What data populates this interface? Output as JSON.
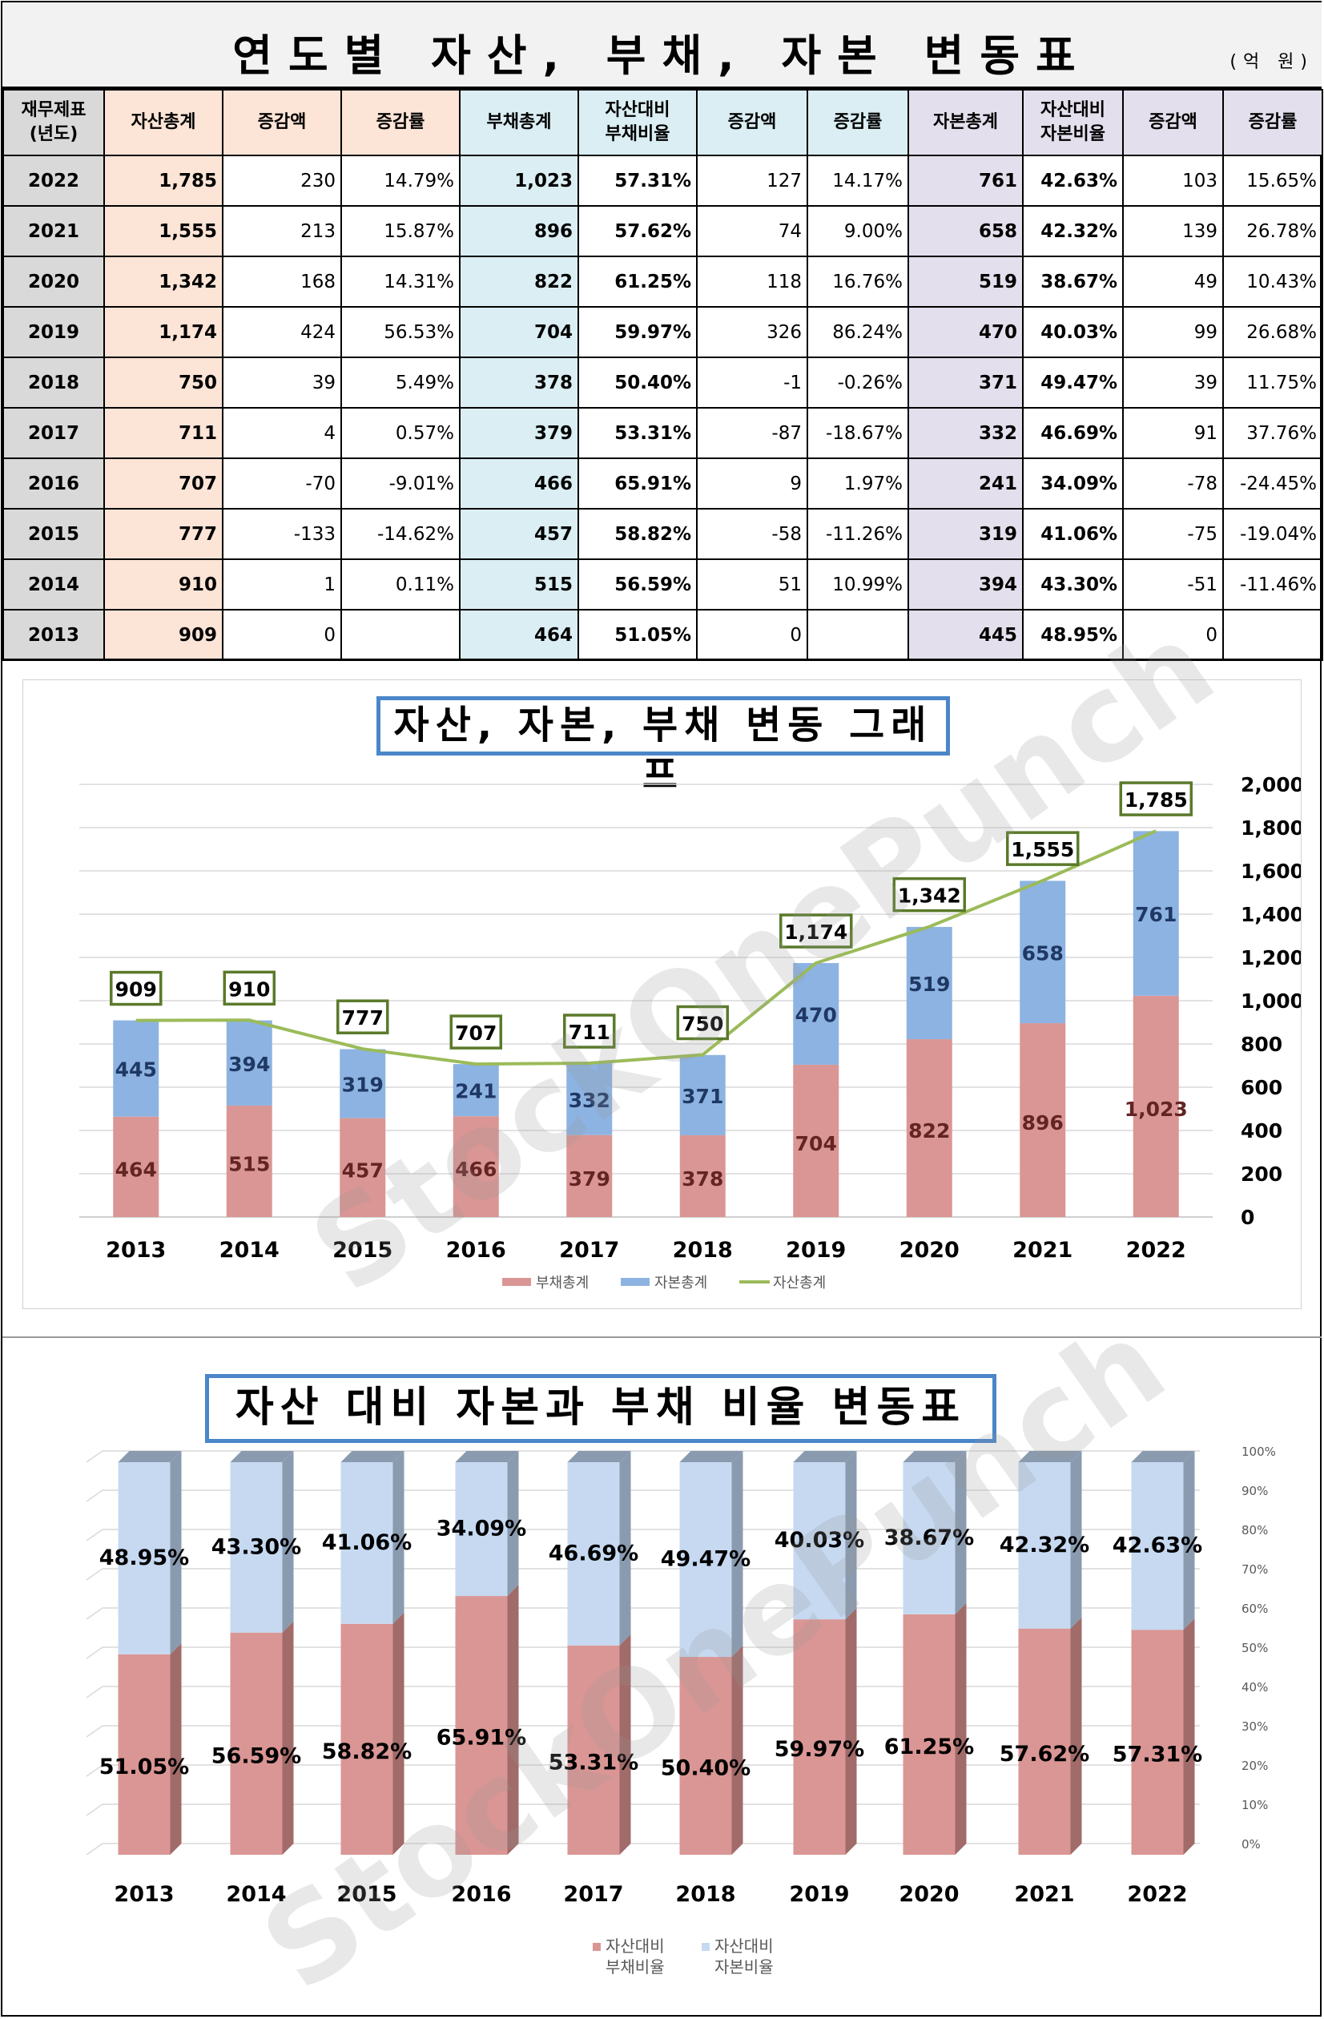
{
  "title": "연도별 자산, 부채, 자본 변동표",
  "unit": "(억 원)",
  "watermark": "StockOnePunch",
  "table": {
    "headers": [
      "재무제표\n(년도)",
      "자산총계",
      "증감액",
      "증감률",
      "부채총계",
      "자산대비\n부채비율",
      "증감액",
      "증감률",
      "자본총계",
      "자산대비\n자본비율",
      "증감액",
      "증감률"
    ],
    "rows": [
      [
        "2022",
        "1,785",
        "230",
        "14.79%",
        "1,023",
        "57.31%",
        "127",
        "14.17%",
        "761",
        "42.63%",
        "103",
        "15.65%"
      ],
      [
        "2021",
        "1,555",
        "213",
        "15.87%",
        "896",
        "57.62%",
        "74",
        "9.00%",
        "658",
        "42.32%",
        "139",
        "26.78%"
      ],
      [
        "2020",
        "1,342",
        "168",
        "14.31%",
        "822",
        "61.25%",
        "118",
        "16.76%",
        "519",
        "38.67%",
        "49",
        "10.43%"
      ],
      [
        "2019",
        "1,174",
        "424",
        "56.53%",
        "704",
        "59.97%",
        "326",
        "86.24%",
        "470",
        "40.03%",
        "99",
        "26.68%"
      ],
      [
        "2018",
        "750",
        "39",
        "5.49%",
        "378",
        "50.40%",
        "-1",
        "-0.26%",
        "371",
        "49.47%",
        "39",
        "11.75%"
      ],
      [
        "2017",
        "711",
        "4",
        "0.57%",
        "379",
        "53.31%",
        "-87",
        "-18.67%",
        "332",
        "46.69%",
        "91",
        "37.76%"
      ],
      [
        "2016",
        "707",
        "-70",
        "-9.01%",
        "466",
        "65.91%",
        "9",
        "1.97%",
        "241",
        "34.09%",
        "-78",
        "-24.45%"
      ],
      [
        "2015",
        "777",
        "-133",
        "-14.62%",
        "457",
        "58.82%",
        "-58",
        "-11.26%",
        "319",
        "41.06%",
        "-75",
        "-19.04%"
      ],
      [
        "2014",
        "910",
        "1",
        "0.11%",
        "515",
        "56.59%",
        "51",
        "10.99%",
        "394",
        "43.30%",
        "-51",
        "-11.46%"
      ],
      [
        "2013",
        "909",
        "0",
        "",
        "464",
        "51.05%",
        "0",
        "",
        "445",
        "48.95%",
        "0",
        ""
      ]
    ]
  },
  "chart_data": [
    {
      "type": "bar",
      "stacked": true,
      "title": "자산, 자본, 부채 변동 그래프",
      "categories": [
        "2013",
        "2014",
        "2015",
        "2016",
        "2017",
        "2018",
        "2019",
        "2020",
        "2021",
        "2022"
      ],
      "series": [
        {
          "name": "부채총계",
          "type": "bar",
          "color": "#da9694",
          "values": [
            464,
            515,
            457,
            466,
            379,
            378,
            704,
            822,
            896,
            1023
          ],
          "labels": [
            "464",
            "515",
            "457",
            "466",
            "379",
            "378",
            "704",
            "822",
            "896",
            "1,023"
          ]
        },
        {
          "name": "자본총계",
          "type": "bar",
          "color": "#8db3e2",
          "values": [
            445,
            394,
            319,
            241,
            332,
            371,
            470,
            519,
            658,
            761
          ]
        },
        {
          "name": "자산총계",
          "type": "line",
          "color": "#9bbb59",
          "values": [
            909,
            910,
            777,
            707,
            711,
            750,
            1174,
            1342,
            1555,
            1785
          ],
          "labels": [
            "909",
            "910",
            "777",
            "707",
            "711",
            "750",
            "1,174",
            "1,342",
            "1,555",
            "1,785"
          ]
        }
      ],
      "ylim": [
        0,
        2000
      ],
      "yticks": [
        "0",
        "200",
        "400",
        "600",
        "800",
        "1,000",
        "1,200",
        "1,400",
        "1,600",
        "1,800",
        "2,000"
      ],
      "yaxis_position": "right",
      "grid": true,
      "legend": "bottom"
    },
    {
      "type": "bar",
      "stacked": true,
      "percent": true,
      "style": "3d",
      "title": "자산 대비 자본과 부채 비율 변동표",
      "categories": [
        "2013",
        "2014",
        "2015",
        "2016",
        "2017",
        "2018",
        "2019",
        "2020",
        "2021",
        "2022"
      ],
      "series": [
        {
          "name": "자산대비 부채비율",
          "color": "#da9694",
          "values": [
            51.05,
            56.59,
            58.82,
            65.91,
            53.31,
            50.4,
            59.97,
            61.25,
            57.62,
            57.31
          ],
          "labels": [
            "51.05%",
            "56.59%",
            "58.82%",
            "65.91%",
            "53.31%",
            "50.40%",
            "59.97%",
            "61.25%",
            "57.62%",
            "57.31%"
          ]
        },
        {
          "name": "자산대비 자본비율",
          "color": "#c6d9f1",
          "values": [
            48.95,
            43.3,
            41.06,
            34.09,
            46.69,
            49.47,
            40.03,
            38.67,
            42.32,
            42.63
          ],
          "labels": [
            "48.95%",
            "43.30%",
            "41.06%",
            "34.09%",
            "46.69%",
            "49.47%",
            "40.03%",
            "38.67%",
            "42.32%",
            "42.63%"
          ]
        }
      ],
      "ylim": [
        0,
        100
      ],
      "yticks": [
        "0%",
        "10%",
        "20%",
        "30%",
        "40%",
        "50%",
        "60%",
        "70%",
        "80%",
        "90%",
        "100%"
      ],
      "yaxis_position": "right",
      "grid": true,
      "legend": "bottom"
    }
  ]
}
